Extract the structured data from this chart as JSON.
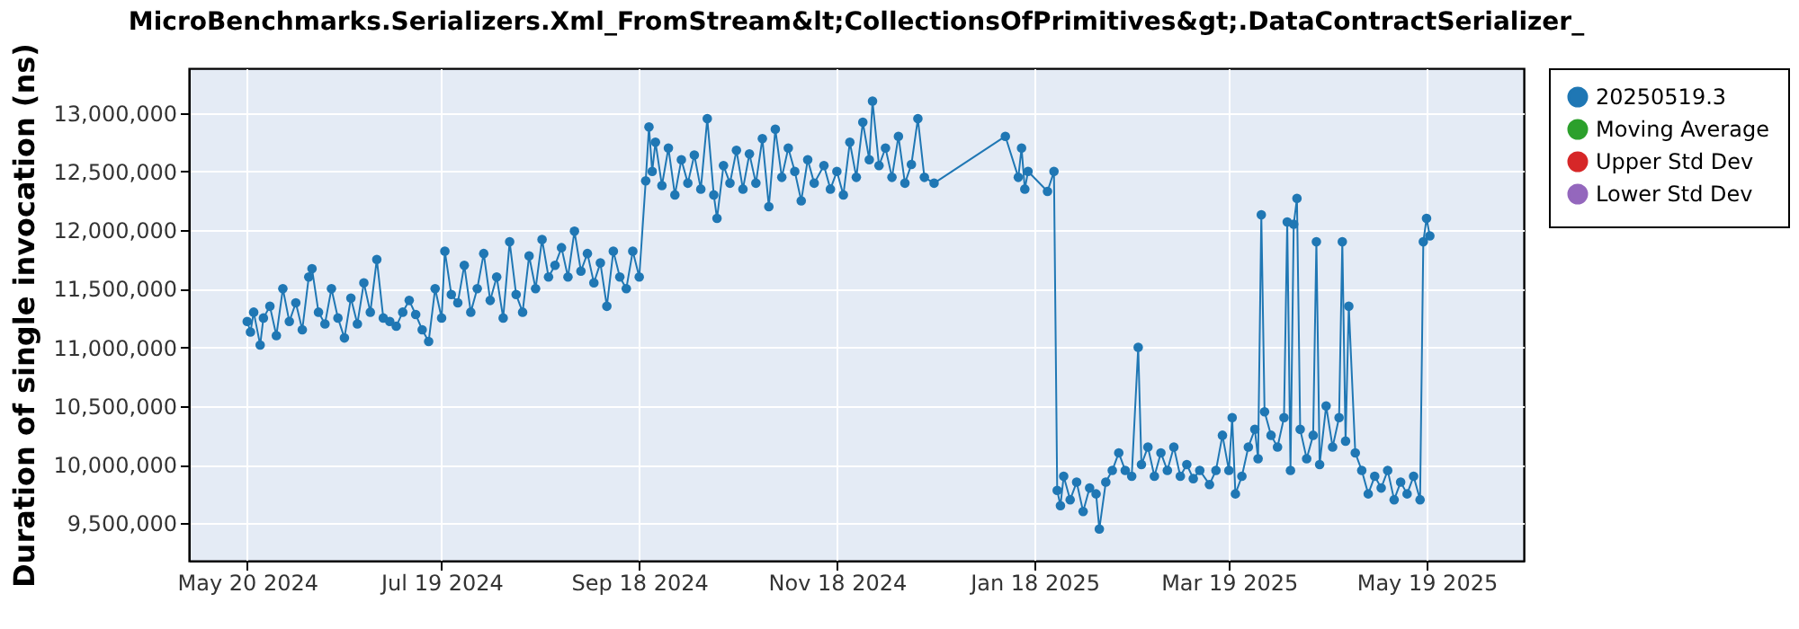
{
  "chart_data": {
    "type": "line",
    "title": "MicroBenchmarks.Serializers.Xml_FromStream&lt;CollectionsOfPrimitives&gt;.DataContractSerializer_",
    "ylabel": "Duration of single invocation (ns)",
    "xlim": [
      "2024-05-02",
      "2025-06-18"
    ],
    "xticks": [
      {
        "value": "2024-05-20",
        "label": "May 20 2024"
      },
      {
        "value": "2024-07-19",
        "label": "Jul 19 2024"
      },
      {
        "value": "2024-09-18",
        "label": "Sep 18 2024"
      },
      {
        "value": "2024-11-18",
        "label": "Nov 18 2024"
      },
      {
        "value": "2025-01-18",
        "label": "Jan 18 2025"
      },
      {
        "value": "2025-03-19",
        "label": "Mar 19 2025"
      },
      {
        "value": "2025-05-19",
        "label": "May 19 2025"
      }
    ],
    "ylim": [
      9180000,
      13380000
    ],
    "yticks": [
      {
        "value": 9500000,
        "label": "9,500,000"
      },
      {
        "value": 10000000,
        "label": "10,000,000"
      },
      {
        "value": 10500000,
        "label": "10,500,000"
      },
      {
        "value": 11000000,
        "label": "11,000,000"
      },
      {
        "value": 11500000,
        "label": "11,500,000"
      },
      {
        "value": 12000000,
        "label": "12,000,000"
      },
      {
        "value": 12500000,
        "label": "12,500,000"
      },
      {
        "value": 13000000,
        "label": "13,000,000"
      }
    ],
    "grid": true,
    "legend": "right",
    "marker": "circle",
    "line_style": "solid",
    "series": [
      {
        "name": "20250519.3",
        "color": "#1f77b4",
        "x": [
          "2024-05-20",
          "2024-05-21",
          "2024-05-22",
          "2024-05-24",
          "2024-05-25",
          "2024-05-27",
          "2024-05-29",
          "2024-05-31",
          "2024-06-02",
          "2024-06-04",
          "2024-06-06",
          "2024-06-08",
          "2024-06-09",
          "2024-06-11",
          "2024-06-13",
          "2024-06-15",
          "2024-06-17",
          "2024-06-19",
          "2024-06-21",
          "2024-06-23",
          "2024-06-25",
          "2024-06-27",
          "2024-06-29",
          "2024-07-01",
          "2024-07-03",
          "2024-07-05",
          "2024-07-07",
          "2024-07-09",
          "2024-07-11",
          "2024-07-13",
          "2024-07-15",
          "2024-07-17",
          "2024-07-19",
          "2024-07-20",
          "2024-07-22",
          "2024-07-24",
          "2024-07-26",
          "2024-07-28",
          "2024-07-30",
          "2024-08-01",
          "2024-08-03",
          "2024-08-05",
          "2024-08-07",
          "2024-08-09",
          "2024-08-11",
          "2024-08-13",
          "2024-08-15",
          "2024-08-17",
          "2024-08-19",
          "2024-08-21",
          "2024-08-23",
          "2024-08-25",
          "2024-08-27",
          "2024-08-29",
          "2024-08-31",
          "2024-09-02",
          "2024-09-04",
          "2024-09-06",
          "2024-09-08",
          "2024-09-10",
          "2024-09-12",
          "2024-09-14",
          "2024-09-16",
          "2024-09-18",
          "2024-09-20",
          "2024-09-21",
          "2024-09-22",
          "2024-09-23",
          "2024-09-25",
          "2024-09-27",
          "2024-09-29",
          "2024-10-01",
          "2024-10-03",
          "2024-10-05",
          "2024-10-07",
          "2024-10-09",
          "2024-10-11",
          "2024-10-12",
          "2024-10-14",
          "2024-10-16",
          "2024-10-18",
          "2024-10-20",
          "2024-10-22",
          "2024-10-24",
          "2024-10-26",
          "2024-10-28",
          "2024-10-30",
          "2024-11-01",
          "2024-11-03",
          "2024-11-05",
          "2024-11-07",
          "2024-11-09",
          "2024-11-11",
          "2024-11-14",
          "2024-11-16",
          "2024-11-18",
          "2024-11-20",
          "2024-11-22",
          "2024-11-24",
          "2024-11-26",
          "2024-11-28",
          "2024-11-29",
          "2024-12-01",
          "2024-12-03",
          "2024-12-05",
          "2024-12-07",
          "2024-12-09",
          "2024-12-11",
          "2024-12-13",
          "2024-12-15",
          "2024-12-18",
          "2025-01-09",
          "2025-01-13",
          "2025-01-14",
          "2025-01-15",
          "2025-01-16",
          "2025-01-22",
          "2025-01-24",
          "2025-01-25",
          "2025-01-26",
          "2025-01-27",
          "2025-01-29",
          "2025-01-31",
          "2025-02-02",
          "2025-02-04",
          "2025-02-06",
          "2025-02-07",
          "2025-02-09",
          "2025-02-11",
          "2025-02-13",
          "2025-02-15",
          "2025-02-17",
          "2025-02-19",
          "2025-02-20",
          "2025-02-22",
          "2025-02-24",
          "2025-02-26",
          "2025-02-28",
          "2025-03-02",
          "2025-03-04",
          "2025-03-06",
          "2025-03-08",
          "2025-03-10",
          "2025-03-13",
          "2025-03-15",
          "2025-03-17",
          "2025-03-19",
          "2025-03-20",
          "2025-03-21",
          "2025-03-23",
          "2025-03-25",
          "2025-03-27",
          "2025-03-28",
          "2025-03-29",
          "2025-03-30",
          "2025-04-01",
          "2025-04-03",
          "2025-04-05",
          "2025-04-06",
          "2025-04-07",
          "2025-04-08",
          "2025-04-09",
          "2025-04-10",
          "2025-04-12",
          "2025-04-14",
          "2025-04-15",
          "2025-04-16",
          "2025-04-18",
          "2025-04-20",
          "2025-04-22",
          "2025-04-23",
          "2025-04-24",
          "2025-04-25",
          "2025-04-27",
          "2025-04-29",
          "2025-05-01",
          "2025-05-03",
          "2025-05-05",
          "2025-05-07",
          "2025-05-09",
          "2025-05-11",
          "2025-05-13",
          "2025-05-15",
          "2025-05-17",
          "2025-05-18",
          "2025-05-19",
          "2025-05-20"
        ],
        "values": [
          11220000,
          11130000,
          11300000,
          11020000,
          11250000,
          11350000,
          11100000,
          11500000,
          11220000,
          11380000,
          11150000,
          11600000,
          11670000,
          11300000,
          11200000,
          11500000,
          11250000,
          11080000,
          11420000,
          11200000,
          11550000,
          11300000,
          11750000,
          11250000,
          11220000,
          11180000,
          11300000,
          11400000,
          11280000,
          11150000,
          11050000,
          11500000,
          11250000,
          11820000,
          11450000,
          11380000,
          11700000,
          11300000,
          11500000,
          11800000,
          11400000,
          11600000,
          11250000,
          11900000,
          11450000,
          11300000,
          11780000,
          11500000,
          11920000,
          11600000,
          11700000,
          11850000,
          11600000,
          11990000,
          11650000,
          11800000,
          11550000,
          11720000,
          11350000,
          11820000,
          11600000,
          11500000,
          11820000,
          11600000,
          12420000,
          12880000,
          12500000,
          12750000,
          12380000,
          12700000,
          12300000,
          12600000,
          12400000,
          12640000,
          12350000,
          12950000,
          12300000,
          12100000,
          12550000,
          12400000,
          12680000,
          12350000,
          12650000,
          12400000,
          12780000,
          12200000,
          12860000,
          12450000,
          12700000,
          12500000,
          12250000,
          12600000,
          12400000,
          12550000,
          12350000,
          12500000,
          12300000,
          12750000,
          12450000,
          12920000,
          12600000,
          13100000,
          12550000,
          12700000,
          12450000,
          12800000,
          12400000,
          12560000,
          12950000,
          12450000,
          12400000,
          12800000,
          12450000,
          12700000,
          12350000,
          12500000,
          12330000,
          12500000,
          9780000,
          9650000,
          9900000,
          9700000,
          9850000,
          9600000,
          9800000,
          9750000,
          9450000,
          9850000,
          9950000,
          10100000,
          9950000,
          9900000,
          11000000,
          10000000,
          10150000,
          9900000,
          10100000,
          9950000,
          10150000,
          9900000,
          10000000,
          9880000,
          9950000,
          9830000,
          9950000,
          10250000,
          9950000,
          10400000,
          9750000,
          9900000,
          10150000,
          10300000,
          10050000,
          12130000,
          10450000,
          10250000,
          10150000,
          10400000,
          12070000,
          9950000,
          12050000,
          12270000,
          10300000,
          10050000,
          10250000,
          11900000,
          10000000,
          10500000,
          10150000,
          10400000,
          11900000,
          10200000,
          11350000,
          10100000,
          9950000,
          9750000,
          9900000,
          9800000,
          9950000,
          9700000,
          9850000,
          9750000,
          9900000,
          9700000,
          11900000,
          12100000,
          11950000
        ]
      },
      {
        "name": "Moving Average",
        "color": "#2ca02c"
      },
      {
        "name": "Upper Std Dev",
        "color": "#d62728"
      },
      {
        "name": "Lower Std Dev",
        "color": "#9467bd"
      }
    ]
  }
}
